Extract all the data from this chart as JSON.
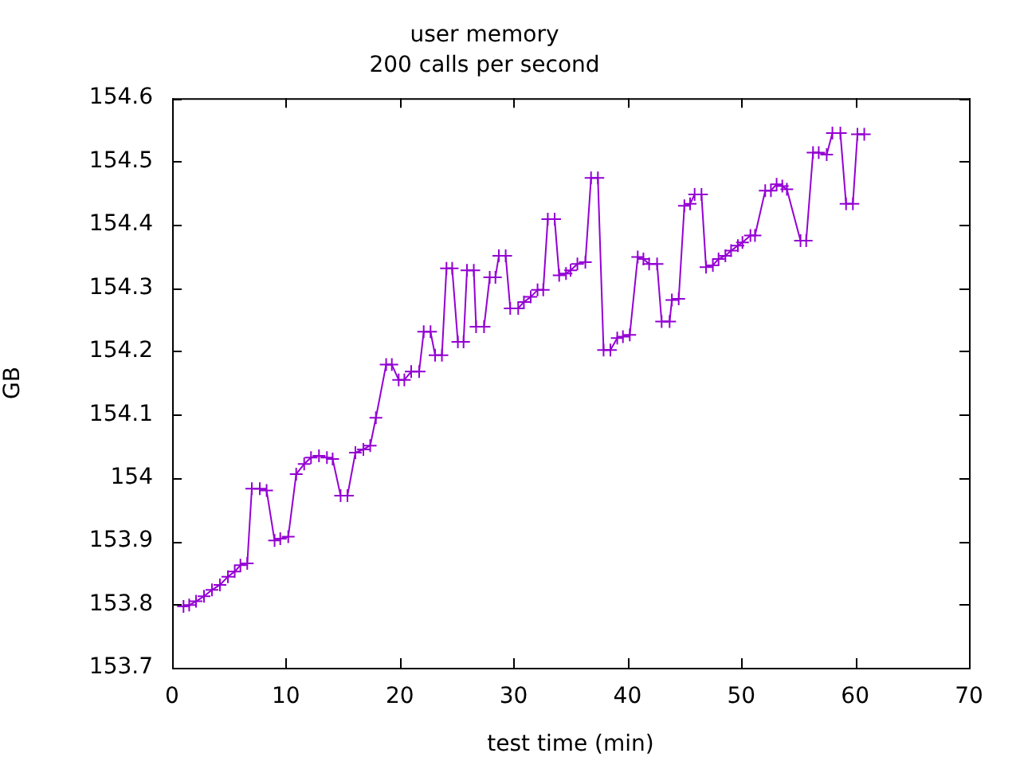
{
  "chart_data": {
    "type": "line",
    "title": "user memory",
    "subtitle": "200 calls per second",
    "xlabel": "test time (min)",
    "ylabel": "GB",
    "xlim": [
      0,
      70
    ],
    "xticks": [
      0,
      10,
      20,
      30,
      40,
      50,
      60,
      70
    ],
    "ylim": [
      153.7,
      154.6
    ],
    "yticks": [
      153.7,
      153.8,
      153.9,
      154,
      154.1,
      154.2,
      154.3,
      154.4,
      154.5,
      154.6
    ],
    "grid": false,
    "legend": false,
    "marker": "cross",
    "line_style": "solid",
    "series": [
      {
        "color": "#9400d3",
        "x": [
          1.0,
          1.5,
          2.1,
          2.8,
          3.5,
          4.2,
          4.9,
          5.5,
          6.0,
          6.6,
          7.0,
          7.7,
          8.3,
          9.0,
          9.5,
          10.2,
          10.9,
          11.6,
          12.2,
          12.9,
          13.6,
          14.1,
          14.8,
          15.4,
          16.1,
          16.8,
          17.4,
          17.9,
          18.8,
          19.3,
          19.9,
          20.4,
          21.0,
          21.7,
          22.1,
          22.7,
          23.1,
          23.7,
          24.1,
          24.6,
          25.1,
          25.6,
          25.9,
          26.5,
          26.7,
          27.4,
          27.9,
          28.4,
          28.7,
          29.3,
          29.7,
          30.4,
          30.9,
          31.5,
          32.1,
          32.6,
          33.0,
          33.6,
          34.0,
          34.6,
          35.0,
          35.6,
          36.3,
          36.8,
          37.4,
          37.9,
          38.5,
          39.1,
          39.6,
          40.2,
          40.9,
          41.4,
          41.9,
          42.6,
          43.0,
          43.7,
          43.9,
          44.5,
          45.0,
          45.5,
          45.9,
          46.5,
          46.9,
          47.5,
          48.0,
          48.6,
          49.1,
          49.7,
          50.1,
          50.8,
          51.2,
          52.1,
          52.6,
          53.1,
          53.6,
          54.0,
          55.2,
          55.7,
          56.3,
          56.8,
          57.5,
          58.0,
          58.7,
          59.2,
          59.8,
          60.2,
          60.8
        ],
        "values": [
          153.797,
          153.799,
          153.805,
          153.813,
          153.823,
          153.831,
          153.844,
          153.852,
          153.862,
          153.865,
          153.983,
          153.983,
          153.98,
          153.901,
          153.904,
          153.907,
          154.006,
          154.022,
          154.032,
          154.035,
          154.032,
          154.03,
          153.972,
          153.972,
          154.04,
          154.045,
          154.051,
          154.095,
          154.179,
          154.179,
          154.155,
          154.155,
          154.168,
          154.168,
          154.231,
          154.231,
          154.194,
          154.194,
          154.331,
          154.331,
          154.215,
          154.215,
          154.328,
          154.328,
          154.239,
          154.239,
          154.317,
          154.317,
          154.351,
          154.351,
          154.268,
          154.268,
          154.278,
          154.286,
          154.297,
          154.297,
          154.409,
          154.409,
          154.32,
          154.323,
          154.328,
          154.338,
          154.341,
          154.474,
          154.474,
          154.202,
          154.202,
          154.221,
          154.223,
          154.226,
          154.349,
          154.346,
          154.338,
          154.338,
          154.247,
          154.247,
          154.281,
          154.283,
          154.43,
          154.433,
          154.448,
          154.448,
          154.333,
          154.336,
          154.346,
          154.351,
          154.359,
          154.367,
          154.372,
          154.383,
          154.383,
          154.454,
          154.454,
          154.464,
          154.461,
          154.456,
          154.375,
          154.375,
          154.514,
          154.514,
          154.511,
          154.545,
          154.545,
          154.433,
          154.433,
          154.543,
          154.543
        ]
      }
    ]
  }
}
